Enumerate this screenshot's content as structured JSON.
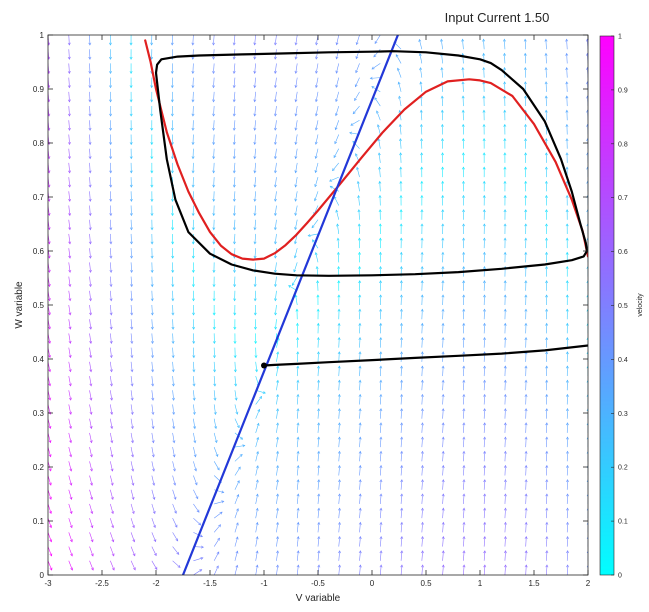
{
  "chart_data": {
    "type": "line",
    "title": "Input Current 1.50",
    "xlabel": "V variable",
    "ylabel": "W variable",
    "xlim": [
      -3,
      2
    ],
    "ylim": [
      0,
      1
    ],
    "xticks": [
      -3,
      -2.5,
      -2,
      -1.5,
      -1,
      -0.5,
      0,
      0.5,
      1,
      1.5,
      2
    ],
    "xtick_labels": [
      "-3",
      "-2.5",
      "-2",
      "-1.5",
      "-1",
      "-0.5",
      "0",
      "0.5",
      "1",
      "1.5",
      "2"
    ],
    "yticks": [
      0,
      0.1,
      0.2,
      0.3,
      0.4,
      0.5,
      0.6,
      0.7,
      0.8,
      0.9,
      1
    ],
    "ytick_labels": [
      "0",
      "0.1",
      "0.2",
      "0.3",
      "0.4",
      "0.5",
      "0.6",
      "0.7",
      "0.8",
      "0.9",
      "1"
    ],
    "grid": false,
    "background": "quiver field of velocity arrows",
    "colorbar": {
      "label": "velocity",
      "range": [
        0,
        1
      ],
      "ticks": [
        0,
        0.1,
        0.2,
        0.3,
        0.4,
        0.5,
        0.6,
        0.7,
        0.8,
        0.9,
        1
      ],
      "tick_labels": [
        "0",
        "0.1",
        "0.2",
        "0.3",
        "0.4",
        "0.5",
        "0.6",
        "0.7",
        "0.8",
        "0.9",
        "1"
      ],
      "colors": [
        "#00ffff",
        "#ff00ff"
      ]
    },
    "series": [
      {
        "role": "v-nullcline",
        "color": "#e02020",
        "x": [
          -2.1,
          -2.05,
          -2.0,
          -1.95,
          -1.9,
          -1.8,
          -1.7,
          -1.6,
          -1.5,
          -1.4,
          -1.3,
          -1.2,
          -1.1,
          -1.0,
          -0.9,
          -0.8,
          -0.7,
          -0.6,
          -0.5,
          -0.3,
          -0.1,
          0.1,
          0.3,
          0.5,
          0.7,
          0.9,
          1.0,
          1.1,
          1.3,
          1.5,
          1.7,
          1.85,
          1.95,
          2.0
        ],
        "y": [
          0.99,
          0.95,
          0.9,
          0.86,
          0.82,
          0.76,
          0.71,
          0.67,
          0.635,
          0.61,
          0.594,
          0.586,
          0.584,
          0.586,
          0.596,
          0.611,
          0.63,
          0.652,
          0.675,
          0.723,
          0.772,
          0.82,
          0.862,
          0.895,
          0.914,
          0.918,
          0.916,
          0.911,
          0.887,
          0.835,
          0.765,
          0.695,
          0.637,
          0.59
        ]
      },
      {
        "role": "w-nullcline",
        "color": "#2238d8",
        "x": [
          -1.75,
          0.24
        ],
        "y": [
          0.0,
          1.0
        ]
      },
      {
        "role": "trajectory",
        "color": "#000000",
        "x": [
          -1.0,
          -0.9,
          -0.7,
          -0.4,
          0.0,
          0.4,
          0.8,
          1.2,
          1.6,
          2.0
        ],
        "y": [
          0.388,
          0.389,
          0.391,
          0.394,
          0.398,
          0.402,
          0.406,
          0.41,
          0.416,
          0.425
        ],
        "start_marker": true
      },
      {
        "role": "limit-cycle",
        "color": "#000000",
        "closed": true,
        "x": [
          -2.0,
          -1.99,
          -1.95,
          -1.8,
          -1.6,
          -1.2,
          -0.8,
          -0.4,
          0.0,
          0.2,
          0.5,
          0.8,
          1.0,
          1.1,
          1.2,
          1.4,
          1.6,
          1.75,
          1.85,
          1.93,
          1.98,
          1.99,
          1.96,
          1.85,
          1.6,
          1.2,
          0.8,
          0.4,
          0.0,
          -0.4,
          -0.7,
          -0.9,
          -1.1,
          -1.3,
          -1.5,
          -1.7,
          -1.82,
          -1.9,
          -1.96,
          -2.0
        ],
        "y": [
          0.93,
          0.945,
          0.955,
          0.96,
          0.962,
          0.964,
          0.966,
          0.968,
          0.969,
          0.97,
          0.968,
          0.962,
          0.955,
          0.948,
          0.935,
          0.9,
          0.84,
          0.77,
          0.71,
          0.65,
          0.615,
          0.6,
          0.59,
          0.583,
          0.575,
          0.567,
          0.561,
          0.557,
          0.555,
          0.554,
          0.555,
          0.558,
          0.564,
          0.575,
          0.595,
          0.635,
          0.695,
          0.77,
          0.86,
          0.93
        ]
      }
    ]
  }
}
